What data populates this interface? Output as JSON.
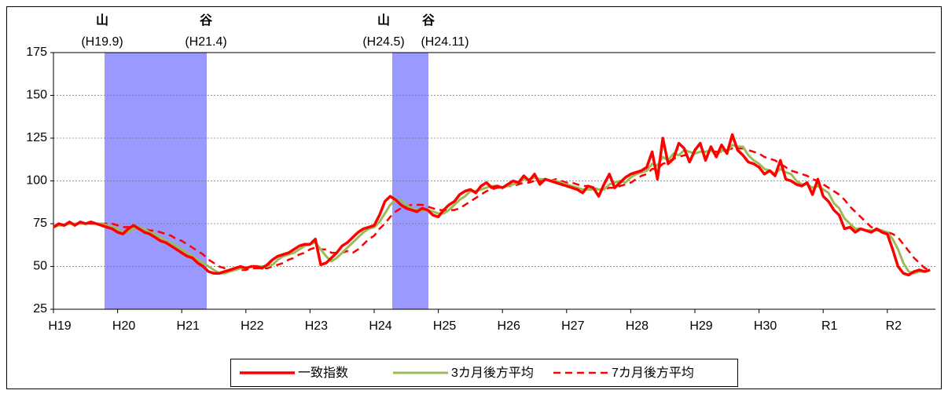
{
  "chart_data": {
    "type": "line",
    "annotations": [
      {
        "peak_label": "山",
        "trough_label": "谷",
        "peak_date": "(H19.9)",
        "trough_date": "(H21.4)"
      },
      {
        "peak_label": "山",
        "trough_label": "谷",
        "peak_date": "(H24.5)",
        "trough_date": "(H24.11)"
      }
    ],
    "categories": [
      "H19",
      null,
      null,
      null,
      null,
      null,
      null,
      null,
      null,
      null,
      null,
      null,
      "H20",
      null,
      null,
      null,
      null,
      null,
      null,
      null,
      null,
      null,
      null,
      null,
      "H21",
      null,
      null,
      null,
      null,
      null,
      null,
      null,
      null,
      null,
      null,
      null,
      "H22",
      null,
      null,
      null,
      null,
      null,
      null,
      null,
      null,
      null,
      null,
      null,
      "H23",
      null,
      null,
      null,
      null,
      null,
      null,
      null,
      null,
      null,
      null,
      null,
      "H24",
      null,
      null,
      null,
      null,
      null,
      null,
      null,
      null,
      null,
      null,
      null,
      "H25",
      null,
      null,
      null,
      null,
      null,
      null,
      null,
      null,
      null,
      null,
      null,
      "H26",
      null,
      null,
      null,
      null,
      null,
      null,
      null,
      null,
      null,
      null,
      null,
      "H27",
      null,
      null,
      null,
      null,
      null,
      null,
      null,
      null,
      null,
      null,
      null,
      "H28",
      null,
      null,
      null,
      null,
      null,
      null,
      null,
      null,
      null,
      null,
      null,
      "H29",
      null,
      null,
      null,
      null,
      null,
      null,
      null,
      null,
      null,
      null,
      null,
      "H30",
      null,
      null,
      null,
      null,
      null,
      null,
      null,
      null,
      null,
      null,
      null,
      "R1",
      null,
      null,
      null,
      null,
      null,
      null,
      null,
      null,
      null,
      null,
      null,
      "R2",
      null,
      null,
      null,
      null,
      null,
      null,
      null,
      null
    ],
    "series": [
      {
        "name": "一致指数",
        "color": "#ff0000",
        "dash": false,
        "width": 3.5,
        "values": [
          73,
          75,
          74,
          76,
          74,
          76,
          75,
          76,
          75,
          74,
          73,
          72,
          70,
          69,
          72,
          74,
          72,
          70,
          69,
          67,
          65,
          64,
          62,
          60,
          58,
          56,
          55,
          52,
          50,
          47,
          46,
          46,
          47,
          48,
          49,
          50,
          49,
          50,
          50,
          49,
          51,
          54,
          56,
          57,
          58,
          60,
          62,
          63,
          63,
          66,
          51,
          52,
          55,
          58,
          62,
          64,
          67,
          70,
          72,
          73,
          74,
          80,
          88,
          91,
          89,
          86,
          84,
          83,
          82,
          84,
          83,
          80,
          79,
          83,
          86,
          88,
          92,
          94,
          95,
          93,
          97,
          99,
          96,
          97,
          96,
          98,
          100,
          99,
          103,
          100,
          104,
          98,
          101,
          100,
          99,
          98,
          97,
          96,
          95,
          93,
          97,
          96,
          91,
          98,
          104,
          96,
          99,
          102,
          104,
          105,
          106,
          108,
          117,
          101,
          125,
          110,
          113,
          122,
          119,
          111,
          118,
          122,
          112,
          120,
          114,
          121,
          116,
          127,
          118,
          115,
          111,
          110,
          108,
          104,
          106,
          103,
          112,
          101,
          100,
          98,
          97,
          99,
          92,
          101,
          91,
          88,
          83,
          80,
          72,
          73,
          70,
          72,
          71,
          70,
          72,
          70,
          69,
          60,
          50,
          46,
          45,
          47,
          48,
          47,
          48
        ]
      },
      {
        "name": "3カ月後方平均",
        "color": "#9bbb59",
        "dash": false,
        "width": 3,
        "values": [
          73,
          74,
          74,
          75,
          75,
          75,
          75,
          76,
          75,
          75,
          74,
          73,
          72,
          70,
          70,
          72,
          73,
          72,
          70,
          69,
          67,
          65,
          64,
          62,
          60,
          58,
          56,
          54,
          52,
          50,
          48,
          46,
          46,
          47,
          48,
          49,
          49,
          50,
          50,
          50,
          50,
          51,
          54,
          56,
          57,
          58,
          60,
          62,
          63,
          64,
          60,
          56,
          53,
          55,
          58,
          61,
          64,
          67,
          70,
          72,
          73,
          76,
          81,
          86,
          89,
          89,
          86,
          84,
          83,
          83,
          83,
          82,
          81,
          81,
          83,
          86,
          89,
          91,
          94,
          94,
          95,
          96,
          97,
          97,
          96,
          97,
          98,
          99,
          101,
          101,
          102,
          101,
          101,
          100,
          100,
          99,
          98,
          97,
          96,
          95,
          95,
          95,
          95,
          95,
          98,
          99,
          100,
          99,
          102,
          104,
          105,
          106,
          110,
          109,
          114,
          112,
          116,
          115,
          118,
          117,
          116,
          117,
          117,
          118,
          115,
          118,
          117,
          121,
          120,
          120,
          115,
          112,
          110,
          107,
          106,
          104,
          107,
          105,
          104,
          100,
          98,
          98,
          96,
          97,
          95,
          93,
          87,
          84,
          78,
          75,
          72,
          72,
          71,
          71,
          71,
          71,
          70,
          66,
          60,
          52,
          47,
          46,
          47,
          47,
          48
        ]
      },
      {
        "name": "7カ月後方平均",
        "color": "#ff0000",
        "dash": true,
        "width": 2.5,
        "values": [
          73,
          74,
          74,
          75,
          75,
          75,
          75,
          75,
          75,
          75,
          75,
          75,
          74,
          73,
          73,
          73,
          72,
          72,
          71,
          71,
          70,
          69,
          68,
          66,
          65,
          63,
          61,
          59,
          57,
          54,
          52,
          50,
          49,
          48,
          48,
          48,
          48,
          49,
          49,
          49,
          49,
          50,
          51,
          52,
          54,
          55,
          57,
          58,
          60,
          61,
          60,
          60,
          58,
          58,
          58,
          59,
          58,
          60,
          63,
          66,
          68,
          72,
          75,
          79,
          82,
          84,
          85,
          86,
          86,
          86,
          85,
          84,
          83,
          83,
          83,
          83,
          84,
          86,
          88,
          90,
          92,
          94,
          95,
          96,
          96,
          97,
          97,
          98,
          99,
          99,
          100,
          100,
          101,
          100,
          101,
          100,
          99,
          99,
          98,
          97,
          97,
          96,
          95,
          95,
          96,
          96,
          97,
          98,
          99,
          101,
          103,
          104,
          107,
          107,
          110,
          111,
          113,
          114,
          115,
          115,
          116,
          117,
          117,
          118,
          117,
          117,
          118,
          119,
          119,
          119,
          118,
          117,
          116,
          114,
          113,
          112,
          110,
          108,
          106,
          105,
          104,
          103,
          101,
          100,
          98,
          96,
          94,
          92,
          89,
          85,
          82,
          79,
          76,
          73,
          72,
          71,
          70,
          69,
          67,
          63,
          59,
          55,
          52,
          49,
          48
        ]
      }
    ],
    "ylim": [
      25,
      175
    ],
    "yticks": [
      25,
      50,
      75,
      100,
      125,
      150,
      175
    ],
    "grid": true
  }
}
